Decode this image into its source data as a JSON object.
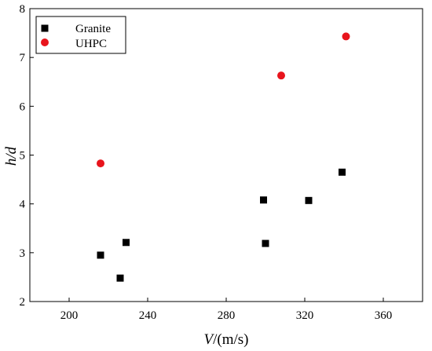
{
  "chart_data": {
    "type": "scatter",
    "xlabel_italic": "V",
    "xlabel_rest": "/(m/s)",
    "ylabel": "h/d",
    "xlim": [
      180,
      380
    ],
    "ylim": [
      2,
      8
    ],
    "xticks": [
      200,
      240,
      280,
      320,
      360
    ],
    "yticks": [
      2,
      3,
      4,
      5,
      6,
      7,
      8
    ],
    "grid": false,
    "legend_position": "top-left",
    "series": [
      {
        "name": "Granite",
        "marker": "square",
        "color": "#000000",
        "points": [
          {
            "x": 216,
            "y": 2.95
          },
          {
            "x": 226,
            "y": 2.48
          },
          {
            "x": 229,
            "y": 3.21
          },
          {
            "x": 299,
            "y": 4.08
          },
          {
            "x": 300,
            "y": 3.19
          },
          {
            "x": 322,
            "y": 4.07
          },
          {
            "x": 339,
            "y": 4.65
          }
        ]
      },
      {
        "name": "UHPC",
        "marker": "circle",
        "color": "#e8141c",
        "points": [
          {
            "x": 216,
            "y": 4.83
          },
          {
            "x": 308,
            "y": 6.63
          },
          {
            "x": 341,
            "y": 7.43
          }
        ]
      }
    ]
  }
}
